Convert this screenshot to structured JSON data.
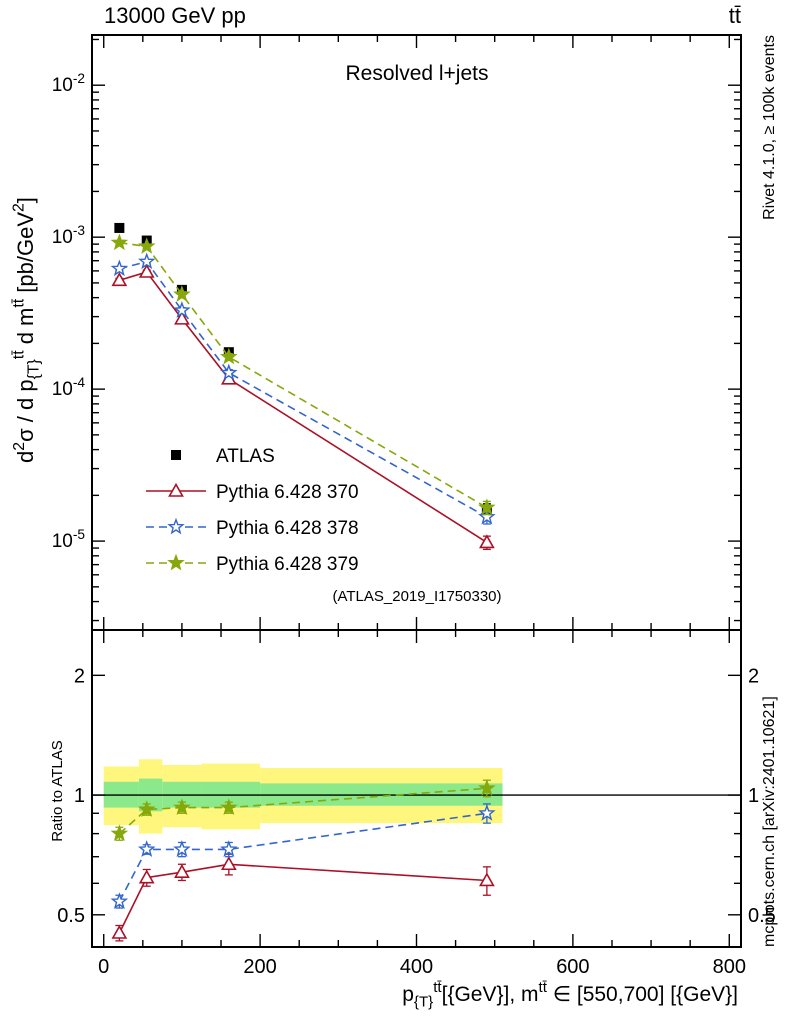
{
  "page": {
    "top_left_label": "13000 GeV pp",
    "top_right_label": "tt̄",
    "right_label_top": "Rivet 4.1.0, ≥ 100k events",
    "right_label_bottom": "mcplots.cern.ch [arXiv:2401.10621]",
    "watermark": "(ATLAS_2019_I1750330)"
  },
  "chart_data": {
    "type": "line",
    "title": "Resolved l+jets",
    "xlabel": "p_{{T}}^{tt̄}[{GeV}], m^{tt̄} ∈ [550,700] [{GeV}]",
    "ylabel": "d^{2}σ / d p_{{T}}^{tt̄} d m^{tt̄} [pb/GeV^{2}]",
    "ratio_ylabel": "Ratio to ATLAS",
    "x_values_gev": [
      20,
      55,
      100,
      160,
      490
    ],
    "xlim": [
      -15,
      815
    ],
    "x_major_ticks": [
      0,
      200,
      400,
      600,
      800
    ],
    "x_minor_step": 50,
    "main_axis": {
      "log": true,
      "range": [
        2.6e-06,
        0.0214
      ],
      "major_tick_exponents": [
        -2,
        -3,
        -4,
        -5
      ]
    },
    "ratio_axis": {
      "log": true,
      "range": [
        0.415,
        2.6
      ],
      "major_ticks": [
        0.5,
        1,
        2
      ],
      "minor_ticks": [
        0.6,
        0.7,
        0.8,
        0.9
      ]
    },
    "series": [
      {
        "name": "ATLAS",
        "color": "#000000",
        "marker": "square",
        "line": "none",
        "values": [
          0.00115,
          0.00095,
          0.00045,
          0.000175,
          1.6e-05
        ],
        "errors_frac": [
          0.04,
          0.04,
          0.05,
          0.05,
          0.1
        ]
      },
      {
        "name": "Pythia 6.428 370",
        "color": "#aa1127",
        "marker": "triangle",
        "line": "solid",
        "values": [
          0.00052,
          0.00059,
          0.00029,
          0.000117,
          9.8e-06
        ],
        "errors_frac": [
          0.03,
          0.03,
          0.04,
          0.05,
          0.1
        ],
        "ratio": [
          0.45,
          0.62,
          0.64,
          0.67,
          0.61
        ],
        "ratio_errors": [
          0.02,
          0.03,
          0.03,
          0.04,
          0.05
        ]
      },
      {
        "name": "Pythia 6.428 378",
        "color": "#3366cc",
        "marker": "star-open",
        "line": "dashed",
        "values": [
          0.00062,
          0.00069,
          0.00033,
          0.000128,
          1.44e-05
        ],
        "errors_frac": [
          0.03,
          0.03,
          0.04,
          0.05,
          0.1
        ],
        "ratio": [
          0.54,
          0.73,
          0.73,
          0.73,
          0.9
        ],
        "ratio_errors": [
          0.02,
          0.02,
          0.03,
          0.03,
          0.05
        ]
      },
      {
        "name": "Pythia 6.428 379",
        "color": "#86a80a",
        "marker": "star",
        "line": "dashed",
        "values": [
          0.00092,
          0.00087,
          0.00042,
          0.000163,
          1.66e-05
        ],
        "errors_frac": [
          0.03,
          0.03,
          0.04,
          0.05,
          0.1
        ],
        "ratio": [
          0.8,
          0.92,
          0.93,
          0.93,
          1.04
        ],
        "ratio_errors": [
          0.03,
          0.03,
          0.03,
          0.03,
          0.05
        ]
      }
    ],
    "ratio_bands": {
      "bin_edges_gev": [
        0,
        45,
        75,
        125,
        200,
        510
      ],
      "yellow": [
        [
          0.84,
          1.18
        ],
        [
          0.8,
          1.23
        ],
        [
          0.83,
          1.19
        ],
        [
          0.82,
          1.2
        ],
        [
          0.85,
          1.17
        ]
      ],
      "green": [
        [
          0.93,
          1.08
        ],
        [
          0.91,
          1.1
        ],
        [
          0.93,
          1.08
        ],
        [
          0.93,
          1.08
        ],
        [
          0.94,
          1.07
        ]
      ],
      "colors": {
        "yellow": "#fff67e",
        "green": "#8be98b"
      }
    }
  }
}
